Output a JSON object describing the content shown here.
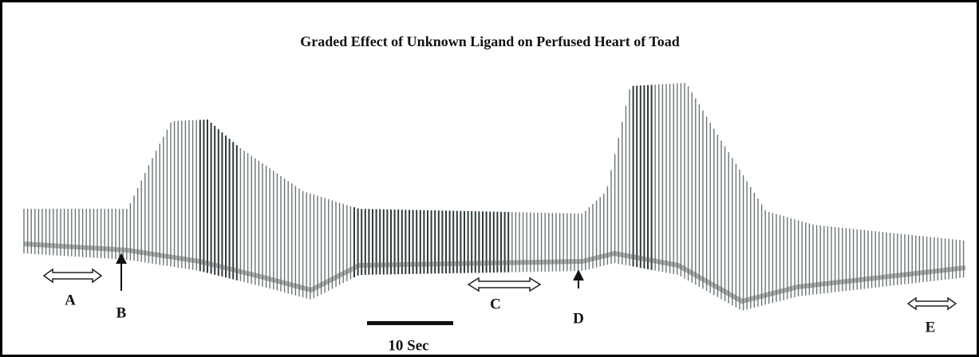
{
  "header": {
    "title": "Graded Effect of Unknown Ligand on Perfused Heart of Toad"
  },
  "markers": [
    {
      "label": "A"
    },
    {
      "label": "B"
    },
    {
      "label": "C"
    },
    {
      "label": "D"
    },
    {
      "label": "E"
    }
  ],
  "scale_bar": {
    "label": "10 Sec"
  }
}
